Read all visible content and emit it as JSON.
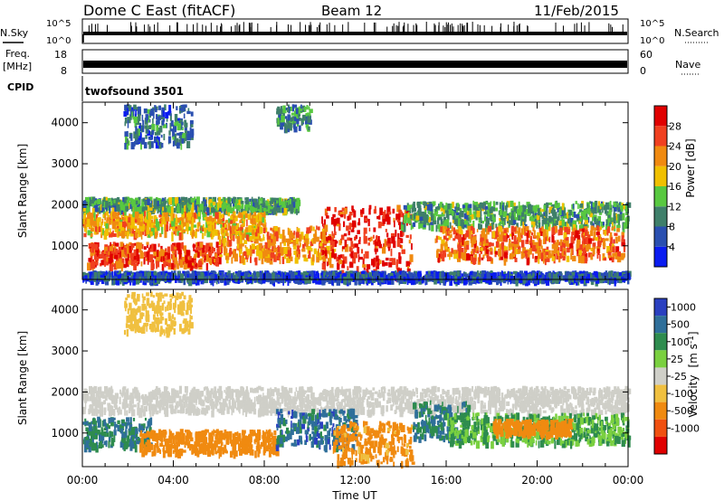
{
  "header": {
    "station": "Dome C East (fitACF)",
    "beam": "Beam 12",
    "date": "11/Feb/2015"
  },
  "panels": {
    "nsky": {
      "label": "N.Sky",
      "left_ticks": [
        "10^5",
        "10^0"
      ],
      "right_ticks": [
        "10^5",
        "10^0"
      ],
      "right_label": "N.Search"
    },
    "freq": {
      "label_line1": "Freq.",
      "label_line2": "[MHz]",
      "left_ticks": [
        "18",
        "8"
      ],
      "right_ticks": [
        "60",
        "0"
      ],
      "right_label": "Nave"
    },
    "cpid": {
      "label": "CPID",
      "program": "twofsound 3501"
    }
  },
  "chart_data": [
    {
      "type": "heatmap",
      "name": "power",
      "ylabel": "Slant Range [km]",
      "xlabel": "",
      "xlim": [
        "00:00",
        "24:00"
      ],
      "ylim": [
        180,
        4500
      ],
      "y_ticks": [
        1000,
        2000,
        3000,
        4000
      ],
      "colorbar": {
        "label": "Power [dB]",
        "ticks": [
          4,
          8,
          12,
          16,
          20,
          24,
          28
        ],
        "range": [
          0,
          32
        ]
      },
      "regions": [
        {
          "t0": 0.0,
          "t1": 9.5,
          "r0": 1900,
          "r1": 2200,
          "value": 12
        },
        {
          "t0": 0.0,
          "t1": 8.0,
          "r0": 1300,
          "r1": 1850,
          "value": 20
        },
        {
          "t0": 0.2,
          "t1": 6.0,
          "r0": 550,
          "r1": 1100,
          "value": 26
        },
        {
          "t0": 6.0,
          "t1": 11.0,
          "r0": 700,
          "r1": 1500,
          "value": 22
        },
        {
          "t0": 10.5,
          "t1": 14.5,
          "r0": 300,
          "r1": 2000,
          "value": 28
        },
        {
          "t0": 14.0,
          "t1": 24.0,
          "r0": 1500,
          "r1": 2100,
          "value": 12
        },
        {
          "t0": 15.5,
          "t1": 23.8,
          "r0": 700,
          "r1": 1500,
          "value": 24
        },
        {
          "t0": 1.8,
          "t1": 4.8,
          "r0": 3500,
          "r1": 4450,
          "value": 8
        },
        {
          "t0": 8.5,
          "t1": 10.0,
          "r0": 3900,
          "r1": 4450,
          "value": 10
        },
        {
          "t0": 0.0,
          "t1": 24.0,
          "r0": 200,
          "r1": 400,
          "value": 6
        }
      ]
    },
    {
      "type": "heatmap",
      "name": "velocity",
      "ylabel": "Slant Range [km]",
      "xlabel": "Time UT",
      "xlim": [
        "00:00",
        "24:00"
      ],
      "ylim": [
        180,
        4500
      ],
      "y_ticks": [
        1000,
        2000,
        3000,
        4000
      ],
      "x_ticks": [
        "00:00",
        "04:00",
        "08:00",
        "12:00",
        "16:00",
        "20:00",
        "00:00"
      ],
      "colorbar": {
        "label": "Velocity",
        "unit_base": "[m s",
        "unit_sup": "-1",
        "unit_end": "]",
        "ticks": [
          "1000",
          "500",
          "100",
          "25",
          "-25",
          "-100",
          "-500",
          "-1000"
        ]
      },
      "regions": [
        {
          "t0": 0.0,
          "t1": 24.0,
          "r0": 1550,
          "r1": 2150,
          "value": 0
        },
        {
          "t0": 0.0,
          "t1": 3.0,
          "r0": 700,
          "r1": 1400,
          "value": 300
        },
        {
          "t0": 2.5,
          "t1": 8.5,
          "r0": 550,
          "r1": 1100,
          "value": -200
        },
        {
          "t0": 8.5,
          "t1": 12.0,
          "r0": 700,
          "r1": 1600,
          "value": 400
        },
        {
          "t0": 11.0,
          "t1": 14.5,
          "r0": 300,
          "r1": 1300,
          "value": -150
        },
        {
          "t0": 14.5,
          "t1": 17.0,
          "r0": 900,
          "r1": 1800,
          "value": 300
        },
        {
          "t0": 16.0,
          "t1": 24.0,
          "r0": 800,
          "r1": 1500,
          "value": 100
        },
        {
          "t0": 18.0,
          "t1": 21.5,
          "r0": 1000,
          "r1": 1350,
          "value": -200
        },
        {
          "t0": 1.8,
          "t1": 4.8,
          "r0": 3500,
          "r1": 4450,
          "value": -40
        }
      ]
    }
  ],
  "colors": {
    "power_scale": [
      "#0a1cf0",
      "#2a4fb0",
      "#3f7f6a",
      "#58c840",
      "#f0c000",
      "#f08a10",
      "#f04020",
      "#e00000"
    ],
    "velocity_scale": [
      "#2a40c0",
      "#2f6f9a",
      "#2e8c4e",
      "#7ad040",
      "#cfcfc8",
      "#f0c040",
      "#f08a10",
      "#f05010",
      "#e00000"
    ]
  }
}
